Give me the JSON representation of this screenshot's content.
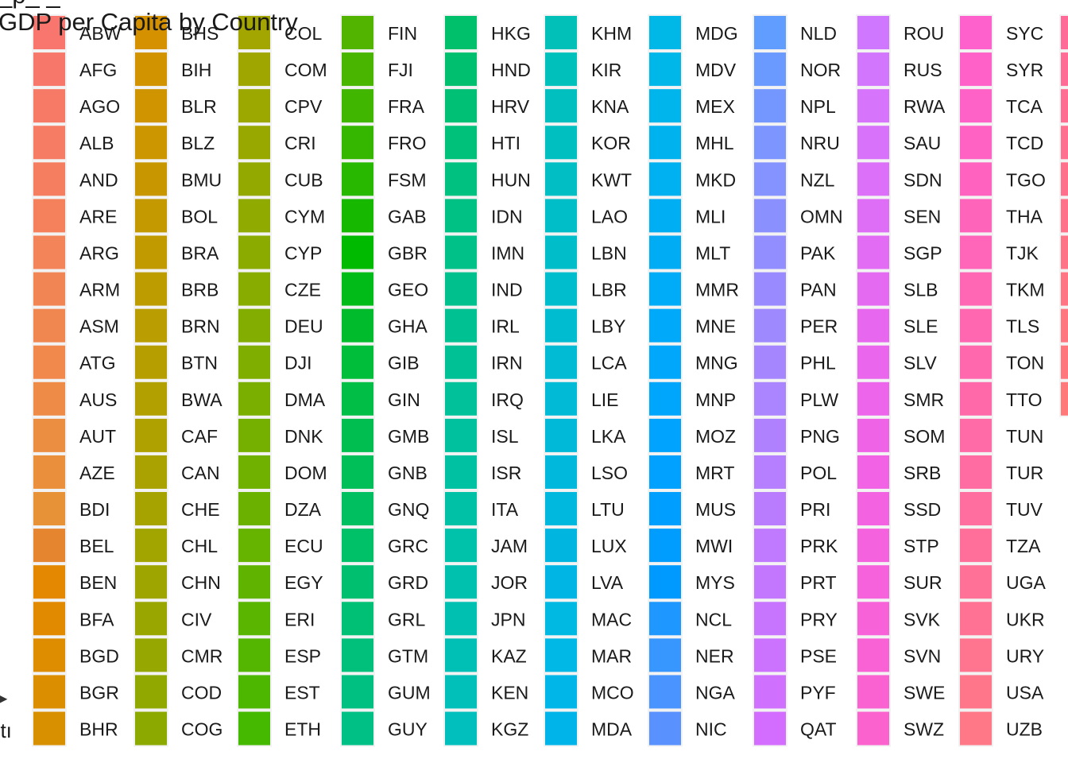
{
  "top_fragment": "_p_ _",
  "left_fragment": "ntı",
  "chart_data": {
    "type": "legend",
    "title": "GDP per Capita by Country",
    "legend_layout": "column-wise, 21 rows per column",
    "columns": [
      {
        "labels": [
          "ABW",
          "AFG",
          "AGO",
          "ALB",
          "AND",
          "ARE",
          "ARG",
          "ARM",
          "ASM",
          "ATG",
          "AUS",
          "AUT",
          "AZE",
          "BDI",
          "BEL",
          "BEN",
          "BFA",
          "BGD",
          "BGR",
          "BHR"
        ],
        "colors": [
          "#F8766D",
          "#F7786A",
          "#F77A67",
          "#F67C63",
          "#F67E60",
          "#F5805C",
          "#F38358",
          "#F28554",
          "#F18750",
          "#F0894B",
          "#EE8B47",
          "#EC8E42",
          "#EA903C",
          "#E89237",
          "#E68530",
          "#E38800",
          "#E18A00",
          "#DE8C00",
          "#DB8E00",
          "#D89000"
        ]
      },
      {
        "labels": [
          "BHS",
          "BIH",
          "BLR",
          "BLZ",
          "BMU",
          "BOL",
          "BRA",
          "BRB",
          "BRN",
          "BTN",
          "BWA",
          "CAF",
          "CAN",
          "CHE",
          "CHL",
          "CHN",
          "CIV",
          "CMR",
          "COD",
          "COG"
        ],
        "colors": [
          "#D59100",
          "#D29300",
          "#CF9400",
          "#CB9600",
          "#C89700",
          "#C49900",
          "#C19A00",
          "#BD9C00",
          "#BA9D00",
          "#B69E00",
          "#B29F00",
          "#AEA100",
          "#AAA200",
          "#A6A300",
          "#A2A400",
          "#9EA500",
          "#99A600",
          "#95A700",
          "#91A800",
          "#8CA900"
        ]
      },
      {
        "labels": [
          "COL",
          "COM",
          "CPV",
          "CRI",
          "CUB",
          "CYM",
          "CYP",
          "CZE",
          "DEU",
          "DJI",
          "DMA",
          "DNK",
          "DOM",
          "DZA",
          "ECU",
          "EGY",
          "ERI",
          "ESP",
          "EST",
          "ETH"
        ],
        "colors": [
          "#A3A500",
          "#A0A600",
          "#9CA700",
          "#98A800",
          "#94A900",
          "#90AA00",
          "#8CAB00",
          "#88AC00",
          "#83AD00",
          "#7FAE00",
          "#7AAF00",
          "#75B000",
          "#70B100",
          "#6BB200",
          "#66B300",
          "#60B400",
          "#5AB500",
          "#54B600",
          "#4DB700",
          "#45B800"
        ]
      },
      {
        "labels": [
          "FIN",
          "FJI",
          "FRA",
          "FRO",
          "FSM",
          "GAB",
          "GBR",
          "GEO",
          "GHA",
          "GIB",
          "GIN",
          "GMB",
          "GNB",
          "GNQ",
          "GRC",
          "GRD",
          "GRL",
          "GTM",
          "GUM",
          "GUY"
        ],
        "colors": [
          "#53B400",
          "#4AB500",
          "#40B600",
          "#35B700",
          "#28B800",
          "#16B900",
          "#00BA00",
          "#00BB18",
          "#00BC2C",
          "#00BD3A",
          "#00BE46",
          "#00BE50",
          "#00BF59",
          "#00BF61",
          "#00C068",
          "#00C06F",
          "#00C075",
          "#00C07B",
          "#00C081",
          "#00C086"
        ]
      },
      {
        "labels": [
          "HKG",
          "HND",
          "HRV",
          "HTI",
          "HUN",
          "IDN",
          "IMN",
          "IND",
          "IRL",
          "IRN",
          "IRQ",
          "ISL",
          "ISR",
          "ITA",
          "JAM",
          "JOR",
          "JPN",
          "KAZ",
          "KEN",
          "KGZ"
        ],
        "colors": [
          "#00C06B",
          "#00C070",
          "#00C075",
          "#00C17A",
          "#00C17F",
          "#00C184",
          "#00C188",
          "#00C18D",
          "#00C191",
          "#00C196",
          "#00C19A",
          "#00C19E",
          "#00C1A2",
          "#00C1A6",
          "#00C1AA",
          "#00C1AE",
          "#00C0B2",
          "#00C0B5",
          "#00C0B9",
          "#00BFBC"
        ]
      },
      {
        "labels": [
          "KHM",
          "KIR",
          "KNA",
          "KOR",
          "KWT",
          "LAO",
          "LBN",
          "LBR",
          "LBY",
          "LCA",
          "LIE",
          "LKA",
          "LSO",
          "LTU",
          "LUX",
          "LVA",
          "MAC",
          "MAR",
          "MCO",
          "MDA"
        ],
        "colors": [
          "#00C0B8",
          "#00C0BB",
          "#00BFBE",
          "#00BFC1",
          "#00BEC4",
          "#00BEC7",
          "#00BDCA",
          "#00BDCD",
          "#00BCD0",
          "#00BBD3",
          "#00BAD6",
          "#00B9D8",
          "#00B8DB",
          "#00B7DE",
          "#00B6E0",
          "#00B5E3",
          "#00B9E3",
          "#00B8E5",
          "#00B6E8",
          "#00B4EA"
        ]
      },
      {
        "labels": [
          "MDG",
          "MDV",
          "MEX",
          "MHL",
          "MKD",
          "MLI",
          "MLT",
          "MMR",
          "MNE",
          "MNG",
          "MNP",
          "MOZ",
          "MRT",
          "MUS",
          "MWI",
          "MYS",
          "NCL",
          "NER",
          "NGA",
          "NIC"
        ],
        "colors": [
          "#00B8E7",
          "#00B7EA",
          "#00B5EC",
          "#00B3EF",
          "#00B1F1",
          "#00AFF3",
          "#00ADF5",
          "#00ABF7",
          "#00A9F9",
          "#00A7FB",
          "#00A5FC",
          "#00A3FE",
          "#00A1FF",
          "#009FFF",
          "#009DFF",
          "#009AFF",
          "#1E98FF",
          "#3896FF",
          "#4A94FF",
          "#5992FF"
        ]
      },
      {
        "labels": [
          "NLD",
          "NOR",
          "NPL",
          "NRU",
          "NZL",
          "OMN",
          "PAK",
          "PAN",
          "PER",
          "PHL",
          "PLW",
          "PNG",
          "POL",
          "PRI",
          "PRK",
          "PRT",
          "PRY",
          "PSE",
          "PYF",
          "QAT"
        ],
        "colors": [
          "#619CFF",
          "#6A9AFF",
          "#7397FF",
          "#7C95FF",
          "#8493FF",
          "#8B90FF",
          "#928EFF",
          "#998BFF",
          "#9F89FF",
          "#A586FF",
          "#AB84FF",
          "#B081FF",
          "#B57FFF",
          "#BA7CFF",
          "#BF7AFF",
          "#C377FF",
          "#C775FF",
          "#CB72FF",
          "#CF70FF",
          "#D36DFF"
        ]
      },
      {
        "labels": [
          "ROU",
          "RUS",
          "RWA",
          "SAU",
          "SDN",
          "SEN",
          "SGP",
          "SLB",
          "SLE",
          "SLV",
          "SMR",
          "SOM",
          "SRB",
          "SSD",
          "STP",
          "SUR",
          "SVK",
          "SVN",
          "SWE",
          "SWZ"
        ],
        "colors": [
          "#CF78FF",
          "#D276FE",
          "#D674FC",
          "#D972FA",
          "#DC70F8",
          "#DF6EF6",
          "#E26CF4",
          "#E56AF2",
          "#E768EF",
          "#EA66ED",
          "#EC65EA",
          "#EF64E7",
          "#F163E4",
          "#F362E1",
          "#F562DE",
          "#F662DB",
          "#F862D8",
          "#F962D5",
          "#FA62D1",
          "#FB62CE"
        ]
      },
      {
        "labels": [
          "SYC",
          "SYR",
          "TCA",
          "TCD",
          "TGO",
          "THA",
          "TJK",
          "TKM",
          "TLS",
          "TON",
          "TTO",
          "TUN",
          "TUR",
          "TUV",
          "TZA",
          "UGA",
          "UKR",
          "URY",
          "USA",
          "UZB"
        ],
        "colors": [
          "#FF61CC",
          "#FF61C9",
          "#FF62C6",
          "#FF62C2",
          "#FF63BF",
          "#FF64BB",
          "#FF65B8",
          "#FF66B4",
          "#FF67B1",
          "#FF68AD",
          "#FF69A9",
          "#FF6BA6",
          "#FF6CA2",
          "#FF6E9E",
          "#FF6F9A",
          "#FF7197",
          "#FF7293",
          "#FF748F",
          "#FF768B",
          "#FF7887"
        ]
      },
      {
        "labels": [
          "",
          "",
          "",
          "",
          "",
          "",
          "",
          "",
          "",
          "",
          ""
        ],
        "colors": [
          "#FF6A98",
          "#FF6C95",
          "#FF6D92",
          "#FF6F8F",
          "#FF708C",
          "#FF7289",
          "#FF7386",
          "#FF7583",
          "#FF7680",
          "#FF777D",
          "#FF797A"
        ]
      }
    ]
  }
}
